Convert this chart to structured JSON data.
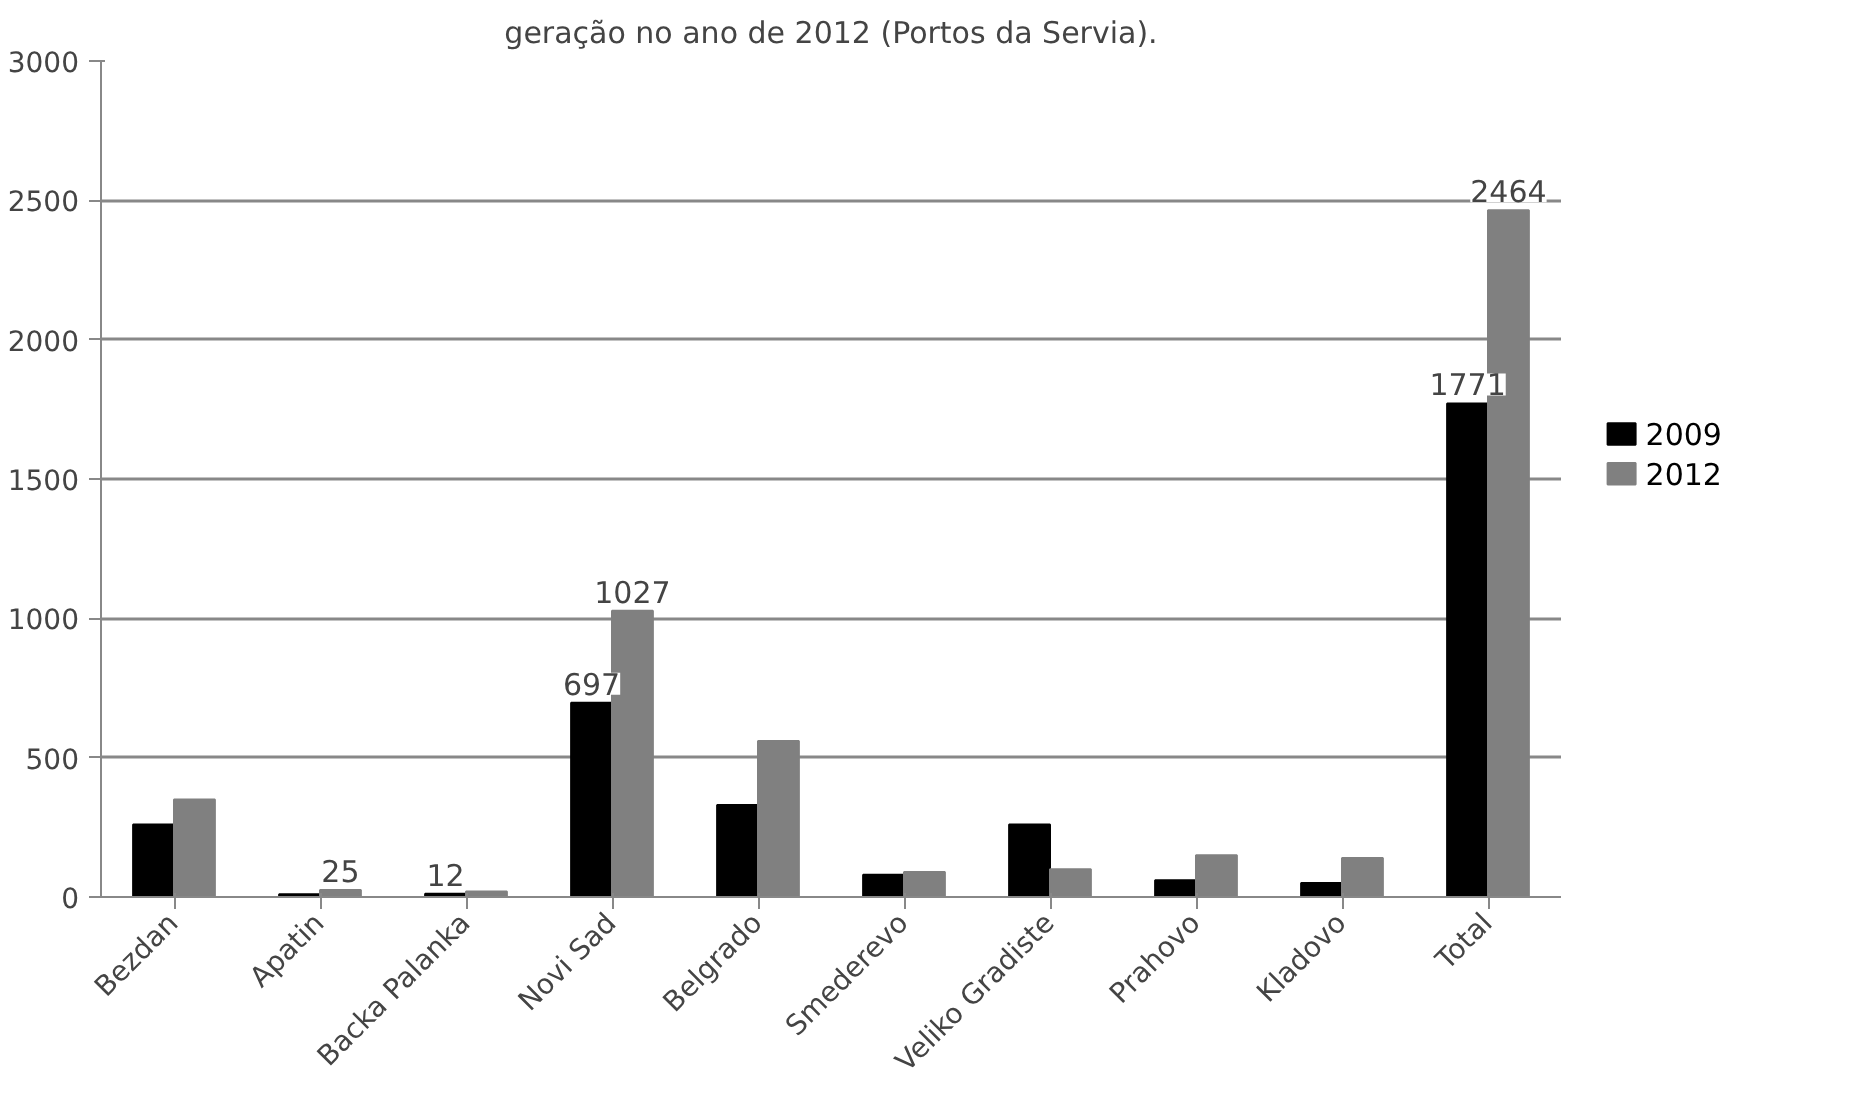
{
  "chart_data": {
    "type": "bar",
    "title": "geração no ano de 2012 (Portos da Servia).",
    "categories": [
      "Bezdan",
      "Apatin",
      "Backa Palanka",
      "Novi Sad",
      "Belgrado",
      "Smederevo",
      "Veliko Gradiste",
      "Prahovo",
      "Kladovo",
      "Total"
    ],
    "series": [
      {
        "name": "2009",
        "color": "#000000",
        "values": [
          260,
          10,
          12,
          697,
          330,
          80,
          260,
          60,
          50,
          1771
        ],
        "value_labels": [
          null,
          null,
          "12",
          "697",
          null,
          null,
          null,
          null,
          null,
          "1771"
        ]
      },
      {
        "name": "2012",
        "color": "#808080",
        "values": [
          350,
          25,
          20,
          1027,
          560,
          90,
          100,
          150,
          140,
          2464
        ],
        "value_labels": [
          null,
          "25",
          null,
          "1027",
          null,
          null,
          null,
          null,
          null,
          "2464"
        ]
      }
    ],
    "ylim": [
      0,
      3000
    ],
    "yticks": [
      0,
      500,
      1000,
      1500,
      2000,
      2500,
      3000
    ],
    "grid": "y",
    "legend": "right"
  }
}
